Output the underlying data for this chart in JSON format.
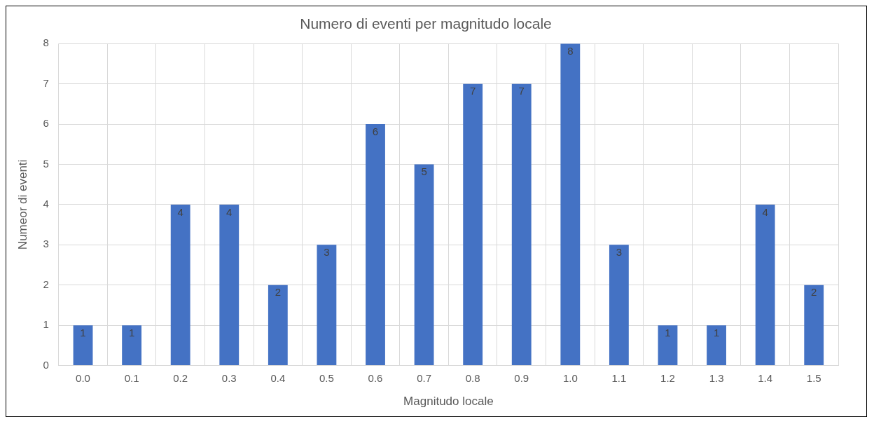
{
  "chart_data": {
    "type": "bar",
    "title": "Numero di eventi per magnitudo locale",
    "xlabel": "Magnitudo locale",
    "ylabel": "Numeor di eventi",
    "categories": [
      "0.0",
      "0.1",
      "0.2",
      "0.3",
      "0.4",
      "0.5",
      "0.6",
      "0.7",
      "0.8",
      "0.9",
      "1.0",
      "1.1",
      "1.2",
      "1.3",
      "1.4",
      "1.5"
    ],
    "values": [
      1,
      1,
      4,
      4,
      2,
      3,
      6,
      5,
      7,
      7,
      8,
      3,
      1,
      1,
      4,
      2
    ],
    "color": "#4472c4",
    "ylim": [
      0,
      8
    ],
    "yticks": [
      0,
      1,
      2,
      3,
      4,
      5,
      6,
      7,
      8
    ],
    "grid": true,
    "data_labels": true
  }
}
